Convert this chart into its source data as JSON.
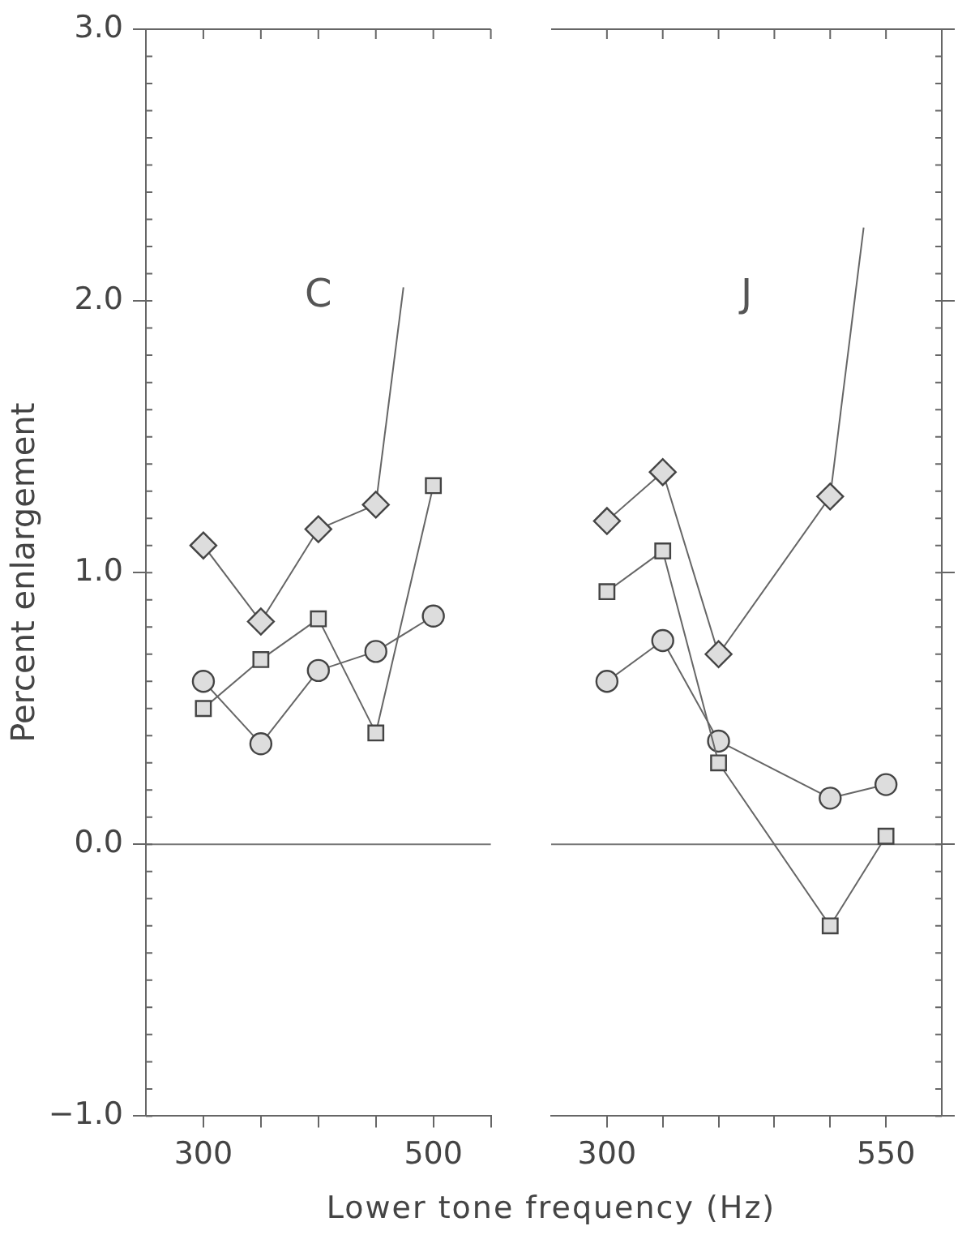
{
  "chart_data": [
    {
      "type": "line",
      "ylabel": "Percent enlargement",
      "xlabel": "Lower tone frequency (Hz)",
      "annotations": [
        "C"
      ],
      "xlim": [
        250,
        550
      ],
      "xticks": [
        300,
        {
          "value": 350,
          "label": null
        },
        {
          "value": 400,
          "label": null
        },
        {
          "value": 450,
          "label": null
        },
        500,
        {
          "value": 550,
          "label": null
        }
      ],
      "ylim": [
        -1,
        3
      ],
      "yticks": [
        {
          "value": -1,
          "label": "−1.0"
        },
        {
          "value": 0,
          "label": "0.0"
        },
        {
          "value": 1,
          "label": "1.0"
        },
        {
          "value": 2,
          "label": "2.0"
        },
        {
          "value": 3,
          "label": "3.0"
        }
      ],
      "grid": false,
      "legend": false,
      "ref_lines": [
        {
          "axis": "y",
          "value": 0
        }
      ],
      "series": [
        {
          "color": "#666666",
          "marker": "diamond",
          "x": [
            300,
            350,
            400,
            450
          ],
          "values": [
            1.1,
            0.82,
            1.16,
            1.25
          ]
        },
        {
          "color": "#666666",
          "marker": "none",
          "x": [
            450,
            474
          ],
          "values": [
            1.25,
            2.05
          ]
        },
        {
          "color": "#666666",
          "marker": "square",
          "x": [
            300,
            350,
            400,
            450,
            500
          ],
          "values": [
            0.5,
            0.68,
            0.83,
            0.41,
            1.32
          ]
        },
        {
          "color": "#666666",
          "marker": "circle",
          "x": [
            300,
            350,
            400,
            450,
            500
          ],
          "values": [
            0.6,
            0.37,
            0.64,
            0.71,
            0.84
          ]
        }
      ]
    },
    {
      "type": "line",
      "annotations": [
        "J"
      ],
      "xlim": [
        250,
        600
      ],
      "xticks": [
        300,
        {
          "value": 350,
          "label": null
        },
        {
          "value": 400,
          "label": null
        },
        {
          "value": 450,
          "label": null
        },
        {
          "value": 500,
          "label": null
        },
        550
      ],
      "ylim": [
        -1,
        3
      ],
      "yticks": [
        {
          "value": -1,
          "label": null
        },
        {
          "value": 0,
          "label": null
        },
        {
          "value": 1,
          "label": null
        },
        {
          "value": 2,
          "label": null
        },
        {
          "value": 3,
          "label": null
        }
      ],
      "tick_labels": "x",
      "grid": false,
      "legend": false,
      "ref_lines": [
        {
          "axis": "y",
          "value": 0
        }
      ],
      "series": [
        {
          "color": "#666666",
          "marker": "diamond",
          "x": [
            300,
            350,
            400,
            500
          ],
          "values": [
            1.19,
            1.37,
            0.7,
            1.28
          ]
        },
        {
          "color": "#666666",
          "marker": "none",
          "x": [
            500,
            530
          ],
          "values": [
            1.28,
            2.27
          ]
        },
        {
          "color": "#666666",
          "marker": "square",
          "x": [
            300,
            350,
            400,
            500,
            550
          ],
          "values": [
            0.93,
            1.08,
            0.3,
            -0.3,
            0.03
          ]
        },
        {
          "color": "#666666",
          "marker": "circle",
          "x": [
            300,
            350,
            400,
            500,
            550
          ],
          "values": [
            0.6,
            0.75,
            0.38,
            0.17,
            0.22
          ]
        }
      ]
    }
  ]
}
